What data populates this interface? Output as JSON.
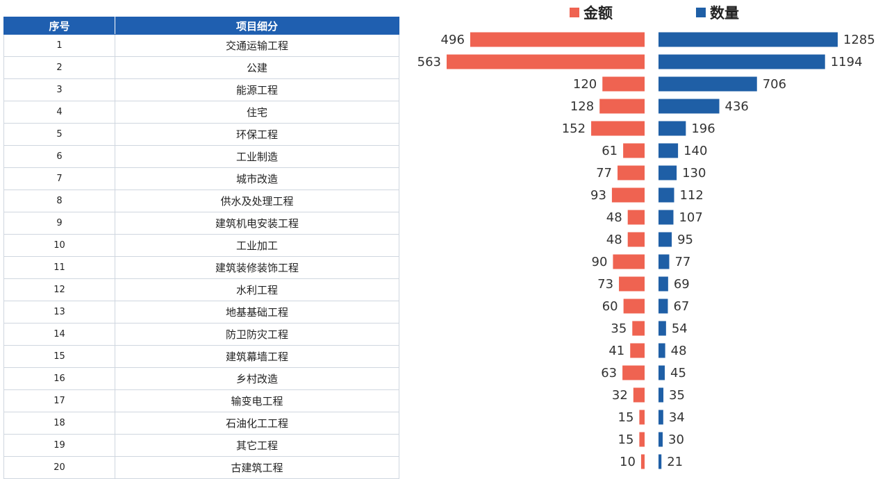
{
  "table": {
    "headers": [
      "序号",
      "项目细分"
    ],
    "rows": [
      [
        "1",
        "交通运输工程"
      ],
      [
        "2",
        "公建"
      ],
      [
        "3",
        "能源工程"
      ],
      [
        "4",
        "住宅"
      ],
      [
        "5",
        "环保工程"
      ],
      [
        "6",
        "工业制造"
      ],
      [
        "7",
        "城市改造"
      ],
      [
        "8",
        "供水及处理工程"
      ],
      [
        "9",
        "建筑机电安装工程"
      ],
      [
        "10",
        "工业加工"
      ],
      [
        "11",
        "建筑装修装饰工程"
      ],
      [
        "12",
        "水利工程"
      ],
      [
        "13",
        "地基基础工程"
      ],
      [
        "14",
        "防卫防灾工程"
      ],
      [
        "15",
        "建筑幕墙工程"
      ],
      [
        "16",
        "乡村改造"
      ],
      [
        "17",
        "输变电工程"
      ],
      [
        "18",
        "石油化工工程"
      ],
      [
        "19",
        "其它工程"
      ],
      [
        "20",
        "古建筑工程"
      ]
    ]
  },
  "chart_data": {
    "type": "bar",
    "orientation": "horizontal-butterfly",
    "categories": [
      "交通运输工程",
      "公建",
      "能源工程",
      "住宅",
      "环保工程",
      "工业制造",
      "城市改造",
      "供水及处理工程",
      "建筑机电安装工程",
      "工业加工",
      "建筑装修装饰工程",
      "水利工程",
      "地基基础工程",
      "防卫防灾工程",
      "建筑幕墙工程",
      "乡村改造",
      "输变电工程",
      "石油化工工程",
      "其它工程",
      "古建筑工程"
    ],
    "series": [
      {
        "name": "金额",
        "color": "#ef6351",
        "side": "left",
        "values": [
          496,
          563,
          120,
          128,
          152,
          61,
          77,
          93,
          48,
          48,
          90,
          73,
          60,
          35,
          41,
          63,
          32,
          15,
          15,
          10
        ]
      },
      {
        "name": "数量",
        "color": "#1f5fa6",
        "side": "right",
        "values": [
          1285,
          1194,
          706,
          436,
          196,
          140,
          130,
          112,
          107,
          95,
          77,
          69,
          67,
          54,
          48,
          45,
          35,
          34,
          30,
          21
        ]
      }
    ],
    "legend": "top",
    "grid": false,
    "title": "",
    "xlabel": "",
    "ylabel": ""
  }
}
